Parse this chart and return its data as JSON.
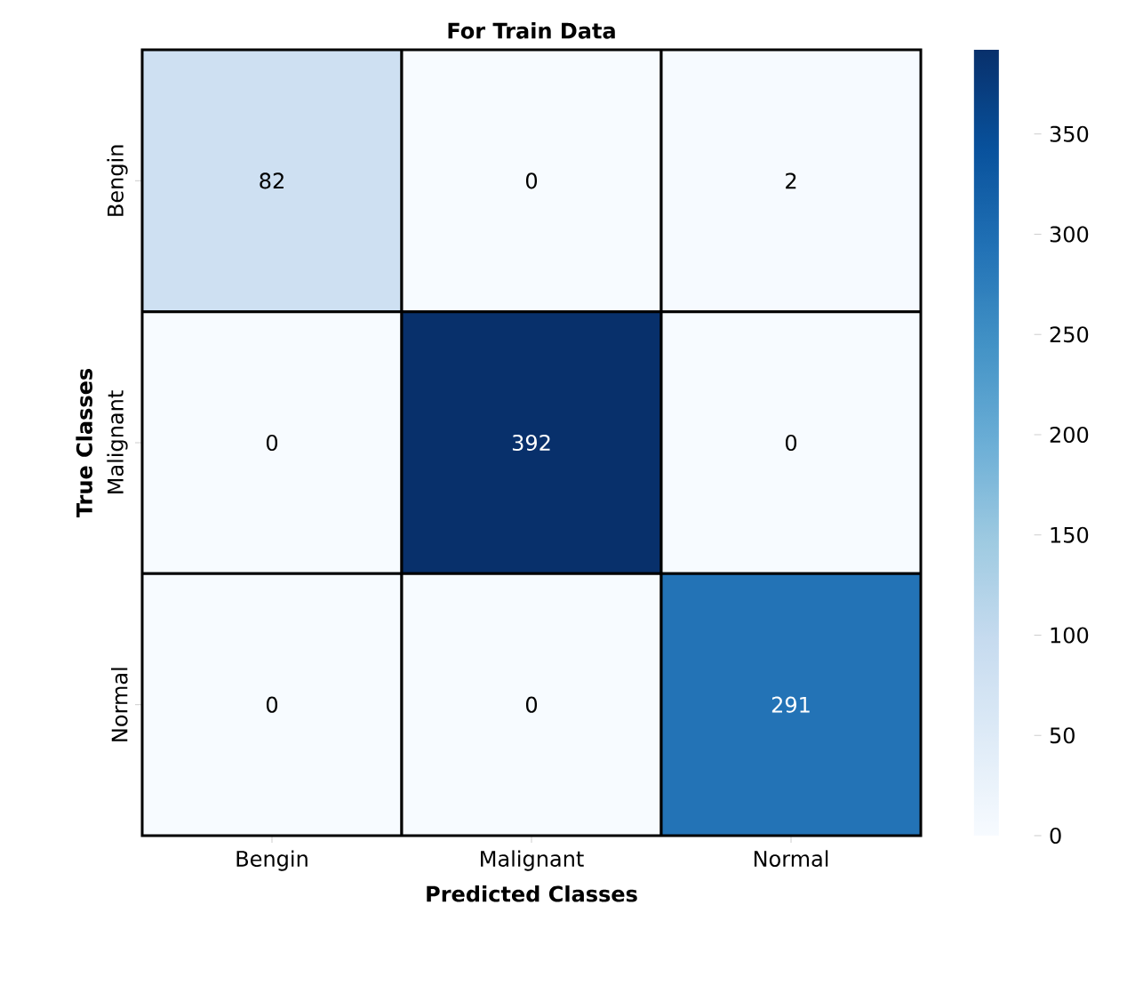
{
  "chart_data": {
    "type": "heatmap",
    "title": "For Train Data",
    "xlabel": "Predicted Classes",
    "ylabel": "True Classes",
    "categories": [
      "Bengin",
      "Malignant",
      "Normal"
    ],
    "y_categories": [
      "Bengin",
      "Malignant",
      "Normal"
    ],
    "cells": [
      [
        82,
        0,
        2
      ],
      [
        0,
        392,
        0
      ],
      [
        0,
        0,
        291
      ]
    ],
    "clim": [
      0,
      392
    ],
    "cticks": [
      0,
      50,
      100,
      150,
      200,
      250,
      300,
      350
    ],
    "data_labels": true
  }
}
